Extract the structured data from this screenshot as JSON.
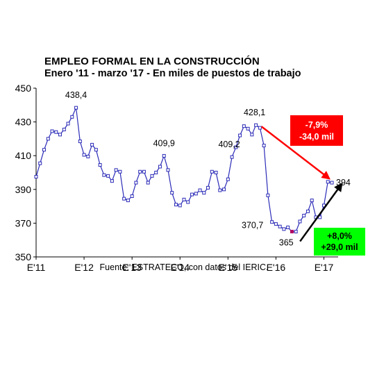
{
  "chart_data": {
    "type": "line",
    "title": "EMPLEO FORMAL EN LA CONSTRUCCIÓN",
    "subtitle": "Enero '11 - marzo '17 - En miles de puestos de trabajo",
    "source": "Fuente: ESTRATECO, con datos del IERIC.",
    "ylim": [
      350,
      450
    ],
    "yticks": [
      350,
      370,
      390,
      410,
      430,
      450
    ],
    "xticks": [
      "E'11",
      "E'12",
      "E'13",
      "E'14",
      "E'15",
      "E'16",
      "E'17"
    ],
    "grid": false,
    "series": [
      {
        "values": [
          397.5,
          405.5,
          413.5,
          420,
          424.5,
          424,
          422.5,
          425.5,
          429,
          433,
          438.4,
          418.5,
          410.5,
          409.5,
          416.5,
          413.5,
          404.5,
          398.5,
          398,
          395,
          401.5,
          400.5,
          384.5,
          383.5,
          386,
          394,
          400.5,
          400.5,
          394,
          398,
          400,
          403.5,
          409.9,
          401.5,
          388,
          381,
          380.5,
          384,
          382.5,
          387,
          387.5,
          389.5,
          388,
          391,
          400.5,
          400,
          389.5,
          390,
          396,
          409.2,
          415,
          422,
          427.5,
          426,
          422.5,
          428.1,
          426.5,
          416,
          386.5,
          370.7,
          369.5,
          368,
          366.5,
          367.5,
          365,
          365,
          371,
          374.5,
          377,
          383.5,
          373.5,
          373.5,
          380.5,
          394.5,
          394
        ]
      }
    ],
    "annotations": [
      {
        "label": "438,4",
        "index": 10
      },
      {
        "label": "409,9",
        "index": 32
      },
      {
        "label": "409,2",
        "index": 49
      },
      {
        "label": "428,1",
        "index": 55
      },
      {
        "label": "370,7",
        "index": 59
      },
      {
        "label": "365",
        "index": 65
      },
      {
        "label": "394",
        "index": 74
      }
    ],
    "callouts": [
      {
        "line1": "-7,9%",
        "line2": "-34,0 mil",
        "color": "#ff0000",
        "text_color": "#ffffff",
        "arrow_color": "#ff0000"
      },
      {
        "line1": "+8,0%",
        "line2": "+29,0 mil",
        "color": "#00ff00",
        "text_color": "#000000",
        "arrow_color": "#000000"
      }
    ],
    "line_color": "#2b2bb8",
    "marker_fill": "#ffffff",
    "highlight_marker_color": "#b00060"
  }
}
